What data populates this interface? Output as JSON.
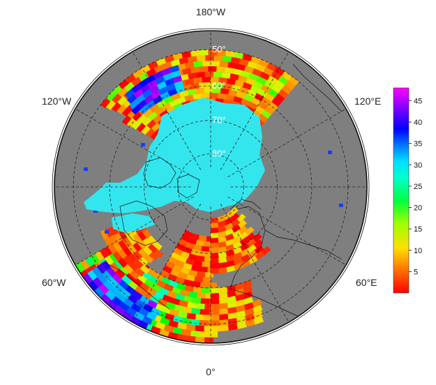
{
  "map": {
    "projection": "north-polar-stereographic",
    "lon_labels": {
      "top": "180°W",
      "left_upper": "120°W",
      "right_upper": "120°E",
      "left_lower": "60°W",
      "right_lower": "60°E",
      "bottom": "0°"
    },
    "lat_labels": [
      "50°",
      "60°",
      "70°",
      "80°"
    ],
    "colors": {
      "land": "#7f7f7f",
      "ice": "#33e6ee",
      "graticule": "#222222"
    }
  },
  "colorbar": {
    "ticks": [
      "45",
      "40",
      "35",
      "30",
      "25",
      "20",
      "15",
      "10",
      "5"
    ],
    "tick_values": [
      45,
      40,
      35,
      30,
      25,
      20,
      15,
      10,
      5
    ],
    "range": [
      0,
      48
    ],
    "colormap": [
      "#ff0000",
      "#ff6a00",
      "#ffd400",
      "#ccff00",
      "#00ff00",
      "#00ffa0",
      "#00ffff",
      "#00a0ff",
      "#0000ff",
      "#8000ff",
      "#ff00ff"
    ]
  }
}
